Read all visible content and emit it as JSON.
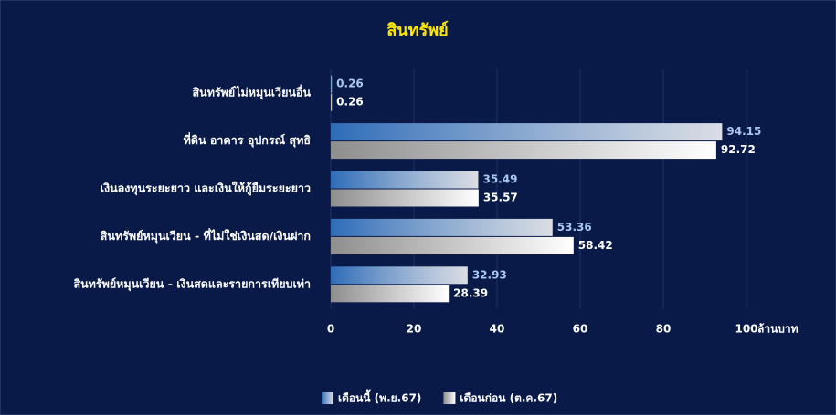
{
  "chart_data": {
    "type": "bar",
    "orientation": "horizontal",
    "title": "สินทรัพย์",
    "categories": [
      "สินทรัพย์ไม่หมุนเวียนอื่น",
      "ที่ดิน อาคาร อุปกรณ์ สุทธิ",
      "เงินลงทุนระยะยาว และเงินให้กู้ยืมระยะยาว",
      "สินทรัพย์หมุนเวียน - ที่ไม่ใช่เงินสด/เงินฝาก",
      "สินทรัพย์หมุนเวียน - เงินสดและรายการเทียบเท่า"
    ],
    "series": [
      {
        "name": "เดือนนี้ (พ.ย.67)",
        "color": "#2e6cb8",
        "label_color": "#a9c8ee",
        "values": [
          0.26,
          94.15,
          35.49,
          53.36,
          32.93
        ]
      },
      {
        "name": "เดือนก่อน (ต.ค.67)",
        "color": "#8e8e8e",
        "label_color": "#ffffff",
        "values": [
          0.26,
          92.72,
          35.57,
          58.42,
          28.39
        ]
      }
    ],
    "x_label": "ล้านบาท",
    "xlim": [
      0,
      100
    ],
    "xticks": [
      0,
      20,
      40,
      60,
      80,
      100
    ],
    "grid": true,
    "legend": "bottom"
  }
}
